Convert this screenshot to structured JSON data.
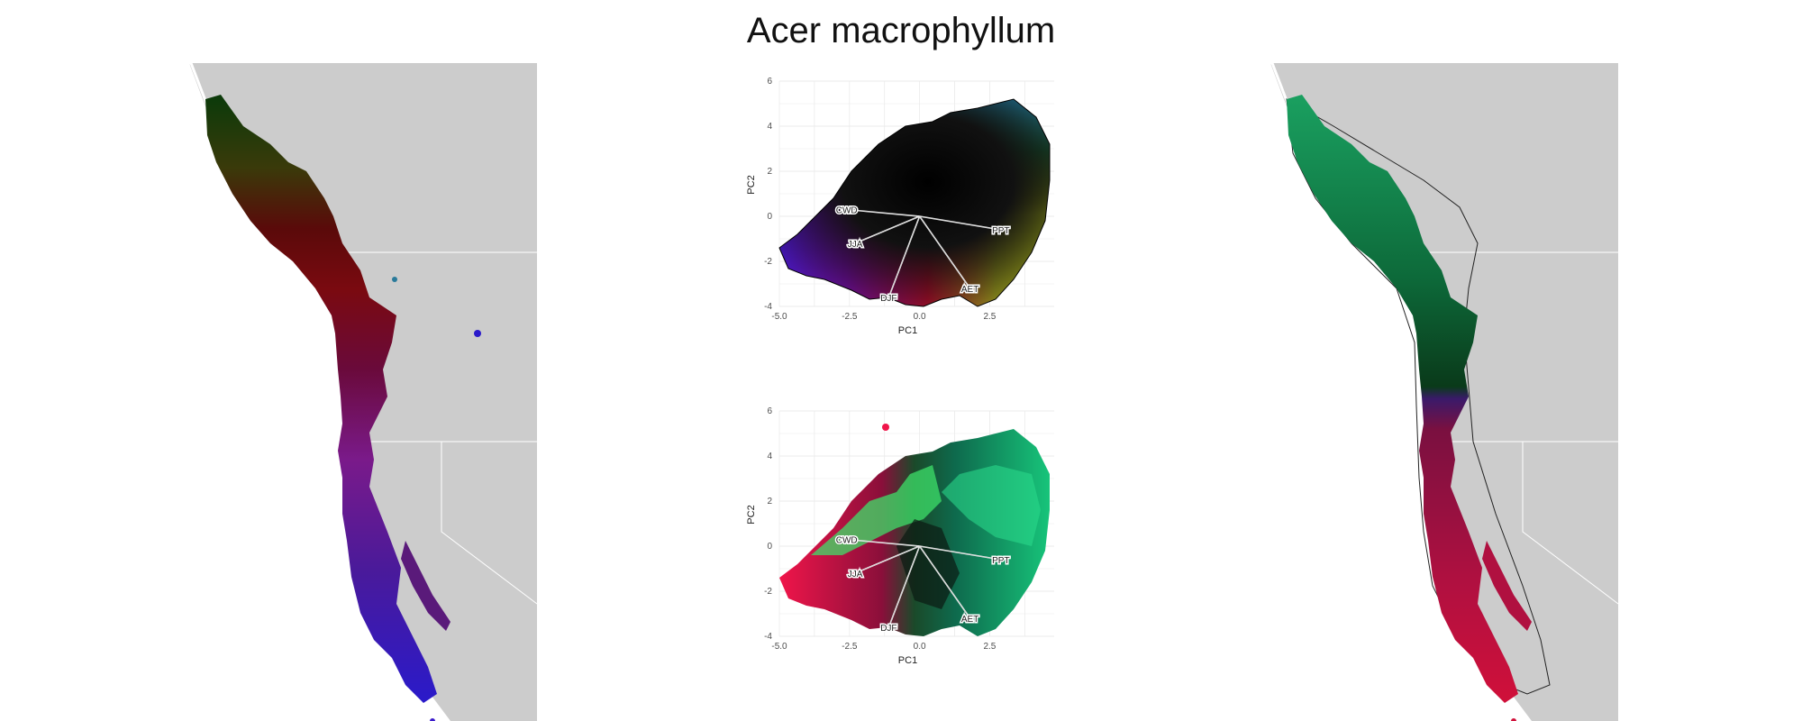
{
  "page": {
    "title": "Acer macrophyllum"
  },
  "colors": {
    "land": "#cccccc",
    "grid": "#ebebeb",
    "background": "#ffffff"
  },
  "chart_data": [
    {
      "type": "map",
      "name": "left-map",
      "fill": "RGB colors from climate PCA space (green, red, magenta, purple, blue)"
    },
    {
      "type": "scatter",
      "name": "pca-color-space",
      "xlabel": "PC1",
      "ylabel": "PC2",
      "xlim": [
        -5.0,
        4.8
      ],
      "ylim": [
        -4,
        6
      ],
      "xticks": [
        "-5.0",
        "-2.5",
        "0.0",
        "2.5"
      ],
      "yticks": [
        "-4",
        "-2",
        "0",
        "2",
        "4",
        "6"
      ],
      "vectors": [
        {
          "label": "CWD",
          "x": -2.6,
          "y": 0.3
        },
        {
          "label": "PPT",
          "x": 2.9,
          "y": -0.6
        },
        {
          "label": "JJA",
          "x": -2.3,
          "y": -1.2
        },
        {
          "label": "DJF",
          "x": -1.1,
          "y": -3.6
        },
        {
          "label": "AET",
          "x": 1.8,
          "y": -3.2
        }
      ],
      "grid": true
    },
    {
      "type": "scatter",
      "name": "pca-cluster-points",
      "xlabel": "PC1",
      "ylabel": "PC2",
      "xlim": [
        -5.0,
        4.8
      ],
      "ylim": [
        -4,
        6
      ],
      "xticks": [
        "-5.0",
        "-2.5",
        "0.0",
        "2.5"
      ],
      "yticks": [
        "-4",
        "-2",
        "0",
        "2",
        "4",
        "6"
      ],
      "vectors": [
        {
          "label": "CWD",
          "x": -2.6,
          "y": 0.3
        },
        {
          "label": "PPT",
          "x": 2.9,
          "y": -0.6
        },
        {
          "label": "JJA",
          "x": -2.3,
          "y": -1.2
        },
        {
          "label": "DJF",
          "x": -1.1,
          "y": -3.6
        },
        {
          "label": "AET",
          "x": 1.8,
          "y": -3.2
        }
      ],
      "series_colors": [
        "#f0154a",
        "#8a0f3a",
        "#3ee06a",
        "#17c47a",
        "#0e6a4d",
        "#0b1a12"
      ],
      "grid": true
    },
    {
      "type": "map",
      "name": "right-map",
      "fill": "green in the north, red-magenta in the south"
    }
  ]
}
